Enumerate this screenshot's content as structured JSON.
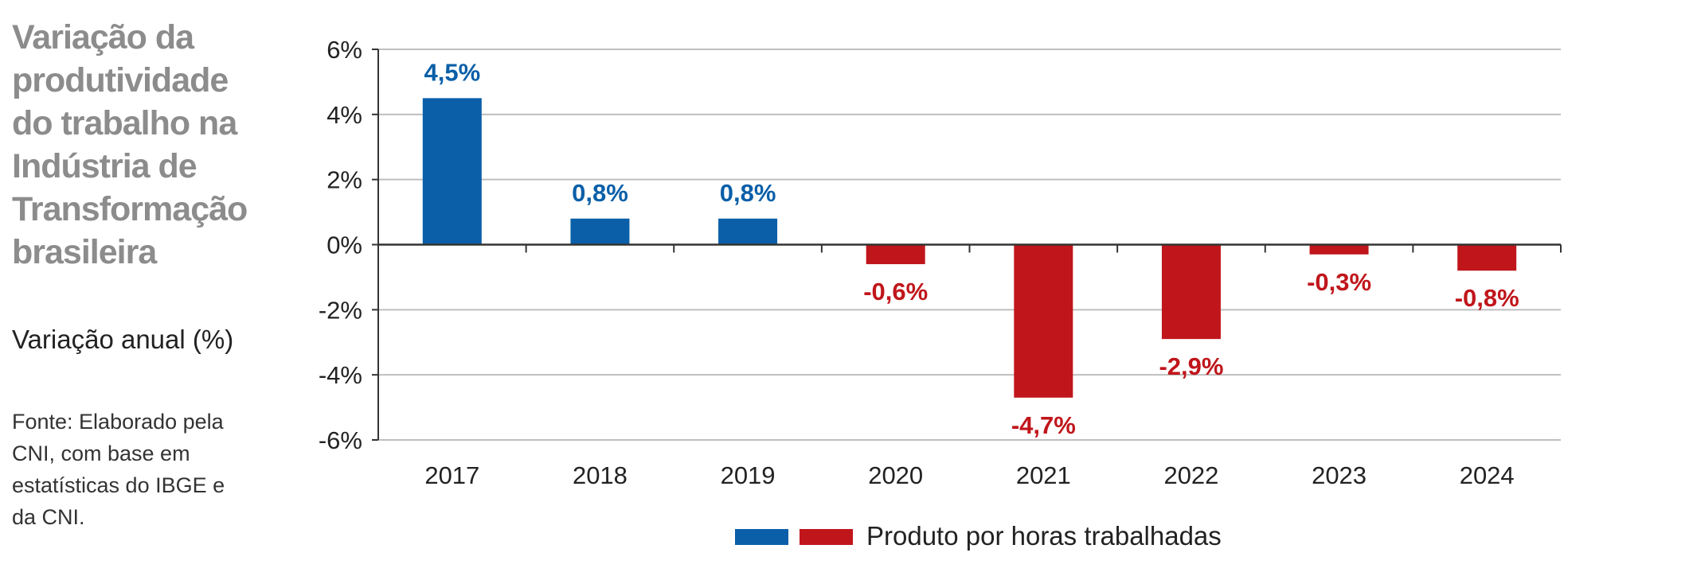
{
  "title": "Variação da produtividade do trabalho na Indústria de Transformação brasileira",
  "subtitle": "Variação anual (%)",
  "source": "Fonte: Elaborado pela CNI, com base em estatísticas do IBGE e da CNI.",
  "chart_data": {
    "type": "bar",
    "categories": [
      "2017",
      "2018",
      "2019",
      "2020",
      "2021",
      "2022",
      "2023",
      "2024"
    ],
    "values": [
      4.5,
      0.8,
      0.8,
      -0.6,
      -4.7,
      -2.9,
      -0.3,
      -0.8
    ],
    "data_labels": [
      "4,5%",
      "0,8%",
      "0,8%",
      "-0,6%",
      "-4,7%",
      "-2,9%",
      "-0,3%",
      "-0,8%"
    ],
    "ylim": [
      -6,
      6
    ],
    "yticks": [
      6,
      4,
      2,
      0,
      -2,
      -4,
      -6
    ],
    "ytick_labels": [
      "6%",
      "4%",
      "2%",
      "0%",
      "-2%",
      "-4%",
      "-6%"
    ],
    "grid": true,
    "legend": {
      "label": "Produto por horas trabalhadas",
      "placement": "bottom"
    },
    "colors": {
      "positive": "#0a5fa8",
      "negative": "#c0161b",
      "grid": "#bfbfbf",
      "axis": "#333333"
    }
  }
}
